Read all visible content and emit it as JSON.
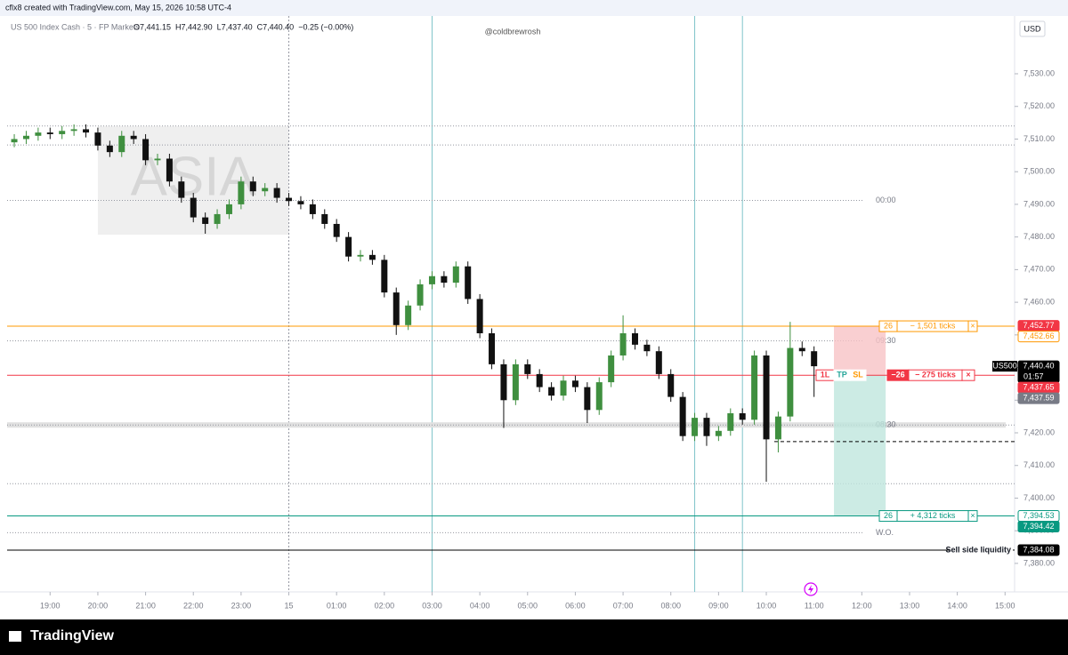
{
  "header": {
    "credit": "cflx8 created with TradingView.com, May 15, 2026 10:58 UTC-4",
    "symbol": "US 500 Index Cash · 5 · FP Markets",
    "ohlc": [
      "O7,441.15",
      "H7,442.90",
      "L7,437.40",
      "C7,440.40",
      "−0.25 (−0.00%)"
    ],
    "watermark": "@coldbrewrosh",
    "currency": "USD"
  },
  "footer": {
    "brand": "TradingView"
  },
  "chart_data": {
    "type": "candlestick",
    "up_color": "#3f8f3f",
    "down_color": "#111111",
    "xlim": [
      "18:06",
      "15:12"
    ],
    "ylim": [
      7372.9,
      7547.7
    ],
    "yticks": [
      {
        "value": 7380,
        "label": "7,380.00"
      },
      {
        "value": 7390,
        "label": "7,390.00"
      },
      {
        "value": 7400,
        "label": "7,400.00"
      },
      {
        "value": 7410,
        "label": "7,410.00"
      },
      {
        "value": 7420,
        "label": "7,420.00"
      },
      {
        "value": 7430,
        "label": "7,430.00"
      },
      {
        "value": 7440,
        "label": "7,440.00"
      },
      {
        "value": 7450,
        "label": "7,450.00"
      },
      {
        "value": 7460,
        "label": "7,460.00"
      },
      {
        "value": 7470,
        "label": "7,470.00"
      },
      {
        "value": 7480,
        "label": "7,480.00"
      },
      {
        "value": 7490,
        "label": "7,490.00"
      },
      {
        "value": 7500,
        "label": "7,500.00"
      },
      {
        "value": 7510,
        "label": "7,510.00"
      },
      {
        "value": 7520,
        "label": "7,520.00"
      },
      {
        "value": 7530,
        "label": "7,530.00"
      }
    ],
    "xticks": [
      "19:00",
      "20:00",
      "21:00",
      "22:00",
      "23:00",
      {
        "value": "00:00",
        "label": "15"
      },
      "01:00",
      "02:00",
      "03:00",
      "04:00",
      "05:00",
      "06:00",
      "07:00",
      "08:00",
      "09:00",
      "10:00",
      "11:00",
      "12:00",
      "13:00",
      "14:00",
      "15:00"
    ],
    "candles": [
      {
        "x": "18:15",
        "open": 7509,
        "high": 7511.5,
        "low": 7507.5,
        "close": 7510
      },
      {
        "x": "18:30",
        "open": 7510,
        "high": 7512.5,
        "low": 7508.5,
        "close": 7511
      },
      {
        "x": "18:45",
        "open": 7511,
        "high": 7513.5,
        "low": 7509.5,
        "close": 7512
      },
      {
        "x": "19:00",
        "open": 7512,
        "high": 7513.5,
        "low": 7510,
        "close": 7511.5
      },
      {
        "x": "19:15",
        "open": 7511.5,
        "high": 7514,
        "low": 7510,
        "close": 7512.5
      },
      {
        "x": "19:30",
        "open": 7512.5,
        "high": 7514.5,
        "low": 7511,
        "close": 7513
      },
      {
        "x": "19:45",
        "open": 7513,
        "high": 7514.5,
        "low": 7510.5,
        "close": 7512
      },
      {
        "x": "20:00",
        "open": 7512,
        "high": 7513.5,
        "low": 7506.5,
        "close": 7508
      },
      {
        "x": "20:15",
        "open": 7508,
        "high": 7509.5,
        "low": 7504.5,
        "close": 7506
      },
      {
        "x": "20:30",
        "open": 7506,
        "high": 7512.5,
        "low": 7504.5,
        "close": 7511
      },
      {
        "x": "20:45",
        "open": 7511,
        "high": 7512.5,
        "low": 7508.5,
        "close": 7510
      },
      {
        "x": "21:00",
        "open": 7510,
        "high": 7511.5,
        "low": 7502,
        "close": 7503.5
      },
      {
        "x": "21:15",
        "open": 7503.5,
        "high": 7505.5,
        "low": 7502,
        "close": 7504
      },
      {
        "x": "21:30",
        "open": 7504,
        "high": 7505.5,
        "low": 7495.5,
        "close": 7497
      },
      {
        "x": "21:45",
        "open": 7497,
        "high": 7498.5,
        "low": 7490.5,
        "close": 7492
      },
      {
        "x": "22:00",
        "open": 7492,
        "high": 7493.5,
        "low": 7484.5,
        "close": 7486
      },
      {
        "x": "22:15",
        "open": 7486,
        "high": 7487.5,
        "low": 7481,
        "close": 7484
      },
      {
        "x": "22:30",
        "open": 7484,
        "high": 7488.5,
        "low": 7482.5,
        "close": 7487
      },
      {
        "x": "22:45",
        "open": 7487,
        "high": 7491.5,
        "low": 7485.5,
        "close": 7490
      },
      {
        "x": "23:00",
        "open": 7490,
        "high": 7498.5,
        "low": 7488.5,
        "close": 7497
      },
      {
        "x": "23:15",
        "open": 7497,
        "high": 7498.5,
        "low": 7492.5,
        "close": 7494
      },
      {
        "x": "23:30",
        "open": 7494,
        "high": 7496.5,
        "low": 7492.5,
        "close": 7495
      },
      {
        "x": "23:45",
        "open": 7495,
        "high": 7496.5,
        "low": 7490.5,
        "close": 7492
      },
      {
        "x": "00:00",
        "open": 7492,
        "high": 7493.5,
        "low": 7489.5,
        "close": 7491
      },
      {
        "x": "00:15",
        "open": 7491,
        "high": 7492.5,
        "low": 7488.5,
        "close": 7490
      },
      {
        "x": "00:30",
        "open": 7490,
        "high": 7491.5,
        "low": 7485.5,
        "close": 7487
      },
      {
        "x": "00:45",
        "open": 7487,
        "high": 7488.5,
        "low": 7482.5,
        "close": 7484
      },
      {
        "x": "01:00",
        "open": 7484,
        "high": 7485.5,
        "low": 7478.5,
        "close": 7480
      },
      {
        "x": "01:15",
        "open": 7480,
        "high": 7481.5,
        "low": 7472.5,
        "close": 7474
      },
      {
        "x": "01:30",
        "open": 7474,
        "high": 7476,
        "low": 7472.5,
        "close": 7474.5
      },
      {
        "x": "01:45",
        "open": 7474.5,
        "high": 7476,
        "low": 7471.5,
        "close": 7473
      },
      {
        "x": "02:00",
        "open": 7473,
        "high": 7474.5,
        "low": 7461.5,
        "close": 7463
      },
      {
        "x": "02:15",
        "open": 7463,
        "high": 7464.5,
        "low": 7450,
        "close": 7453
      },
      {
        "x": "02:30",
        "open": 7453,
        "high": 7460.5,
        "low": 7451.5,
        "close": 7459
      },
      {
        "x": "02:45",
        "open": 7459,
        "high": 7467,
        "low": 7457.5,
        "close": 7465.5
      },
      {
        "x": "03:00",
        "open": 7465.5,
        "high": 7469.5,
        "low": 7464,
        "close": 7468
      },
      {
        "x": "03:15",
        "open": 7468,
        "high": 7469.5,
        "low": 7464.5,
        "close": 7466
      },
      {
        "x": "03:30",
        "open": 7466,
        "high": 7472.5,
        "low": 7464.5,
        "close": 7471
      },
      {
        "x": "03:45",
        "open": 7471,
        "high": 7472.5,
        "low": 7459.5,
        "close": 7461
      },
      {
        "x": "04:00",
        "open": 7461,
        "high": 7462.5,
        "low": 7449,
        "close": 7450.5
      },
      {
        "x": "04:15",
        "open": 7450.5,
        "high": 7452,
        "low": 7439.5,
        "close": 7441
      },
      {
        "x": "04:30",
        "open": 7441,
        "high": 7442.5,
        "low": 7421.5,
        "close": 7430
      },
      {
        "x": "04:45",
        "open": 7430,
        "high": 7442.5,
        "low": 7428.5,
        "close": 7441
      },
      {
        "x": "05:00",
        "open": 7441,
        "high": 7442.5,
        "low": 7436.5,
        "close": 7438
      },
      {
        "x": "05:15",
        "open": 7438,
        "high": 7439.5,
        "low": 7432.5,
        "close": 7434
      },
      {
        "x": "05:30",
        "open": 7434,
        "high": 7435.5,
        "low": 7429.9,
        "close": 7431.4
      },
      {
        "x": "05:45",
        "open": 7431.4,
        "high": 7437.5,
        "low": 7429.9,
        "close": 7436
      },
      {
        "x": "06:00",
        "open": 7436,
        "high": 7437.5,
        "low": 7432.5,
        "close": 7434
      },
      {
        "x": "06:15",
        "open": 7434,
        "high": 7435.5,
        "low": 7423,
        "close": 7427
      },
      {
        "x": "06:30",
        "open": 7427,
        "high": 7437,
        "low": 7425.5,
        "close": 7435.5
      },
      {
        "x": "06:45",
        "open": 7435.5,
        "high": 7445.2,
        "low": 7434,
        "close": 7443.7
      },
      {
        "x": "07:00",
        "open": 7443.7,
        "high": 7456,
        "low": 7442.2,
        "close": 7450.5
      },
      {
        "x": "07:15",
        "open": 7450.5,
        "high": 7452,
        "low": 7445.5,
        "close": 7447
      },
      {
        "x": "07:30",
        "open": 7447,
        "high": 7448.5,
        "low": 7443.5,
        "close": 7445
      },
      {
        "x": "07:45",
        "open": 7445,
        "high": 7446.5,
        "low": 7436.5,
        "close": 7438
      },
      {
        "x": "08:00",
        "open": 7438,
        "high": 7439.5,
        "low": 7429.5,
        "close": 7431
      },
      {
        "x": "08:15",
        "open": 7431,
        "high": 7432.5,
        "low": 7417.5,
        "close": 7419
      },
      {
        "x": "08:30",
        "open": 7419,
        "high": 7426.1,
        "low": 7417.5,
        "close": 7424.6
      },
      {
        "x": "08:45",
        "open": 7424.6,
        "high": 7426.1,
        "low": 7416,
        "close": 7419
      },
      {
        "x": "09:00",
        "open": 7419,
        "high": 7422.1,
        "low": 7417.5,
        "close": 7420.6
      },
      {
        "x": "09:15",
        "open": 7420.6,
        "high": 7427.5,
        "low": 7419.1,
        "close": 7426
      },
      {
        "x": "09:30",
        "open": 7426,
        "high": 7427.5,
        "low": 7422.5,
        "close": 7424
      },
      {
        "x": "09:45",
        "open": 7424,
        "high": 7445.2,
        "low": 7422.5,
        "close": 7443.7
      },
      {
        "x": "10:00",
        "open": 7443.7,
        "high": 7445.2,
        "low": 7405,
        "close": 7418
      },
      {
        "x": "10:15",
        "open": 7418,
        "high": 7426.5,
        "low": 7414,
        "close": 7425
      },
      {
        "x": "10:30",
        "open": 7425,
        "high": 7454,
        "low": 7423.5,
        "close": 7446
      },
      {
        "x": "10:45",
        "open": 7446,
        "high": 7448,
        "low": 7443.5,
        "close": 7445
      },
      {
        "x": "11:00",
        "open": 7445,
        "high": 7446.5,
        "low": 7431,
        "close": 7440.4
      }
    ],
    "levels": [
      {
        "price": 7452.66,
        "color": "#ff9800"
      },
      {
        "price": 7437.65,
        "color": "#f23645"
      },
      {
        "price": 7394.53,
        "color": "#089981"
      },
      {
        "price": 7384.08,
        "color": "#000000",
        "text": "Sell side liquidity"
      }
    ],
    "dotted_levels": [
      {
        "price": 7514
      },
      {
        "price": 7508.2
      },
      {
        "price": 7491.2,
        "short": true,
        "text": "00:00"
      },
      {
        "price": 7448.2,
        "short": true,
        "text": "09:30"
      },
      {
        "price": 7422.4,
        "text": "08:30",
        "band": true
      },
      {
        "price": 7404.4
      },
      {
        "price": 7389.4,
        "short": true,
        "text": "W.O."
      }
    ],
    "dashed_level": {
      "price": 7417.3,
      "from": "10:10"
    },
    "vlines": [
      {
        "time": "00:00",
        "color": "#9598a1",
        "dotted": true
      },
      {
        "time": "03:00",
        "color": "#7fc4c9"
      },
      {
        "time": "08:30",
        "color": "#7fc4c9"
      },
      {
        "time": "09:30",
        "color": "#7fc4c9"
      }
    ],
    "session_box": {
      "from": "20:00",
      "to": "00:00",
      "top": 7513.9,
      "bottom": 7480.7,
      "label": "ASIA"
    },
    "position": {
      "from": "11:25",
      "to": "12:30",
      "entry": 7437.65,
      "stop": 7452.66,
      "target": 7394.53,
      "stop_label": [
        "26",
        "− 1,501 ticks",
        "×"
      ],
      "entry_label": [
        "1L",
        "TP",
        "SL",
        "−26",
        "− 275 ticks",
        "×"
      ],
      "target_label": [
        "26",
        "+ 4,312 ticks",
        "×"
      ]
    },
    "tags": [
      {
        "value": 7452.77,
        "label": "7,452.77",
        "bg": "#f23645",
        "fg": "#ffffff"
      },
      {
        "value": 7452.66,
        "label": "7,452.66",
        "bg": "#ffffff",
        "fg": "#ff9800"
      },
      {
        "value": 7440.4,
        "label": "7,440.40",
        "bg": "#000000",
        "fg": "#ffffff",
        "name": "US500",
        "sub": "01:57"
      },
      {
        "value": 7437.65,
        "label": "7,437.65",
        "bg": "#f23645",
        "fg": "#ffffff"
      },
      {
        "value": 7437.59,
        "label": "7,437.59",
        "bg": "#787b86",
        "fg": "#ffffff"
      },
      {
        "value": 7394.53,
        "label": "7,394.53",
        "bg": "#ffffff",
        "fg": "#089981"
      },
      {
        "value": 7394.42,
        "label": "7,394.42",
        "bg": "#089981",
        "fg": "#ffffff"
      },
      {
        "value": 7384.08,
        "label": "7,384.08",
        "bg": "#000000",
        "fg": "#ffffff"
      }
    ]
  }
}
